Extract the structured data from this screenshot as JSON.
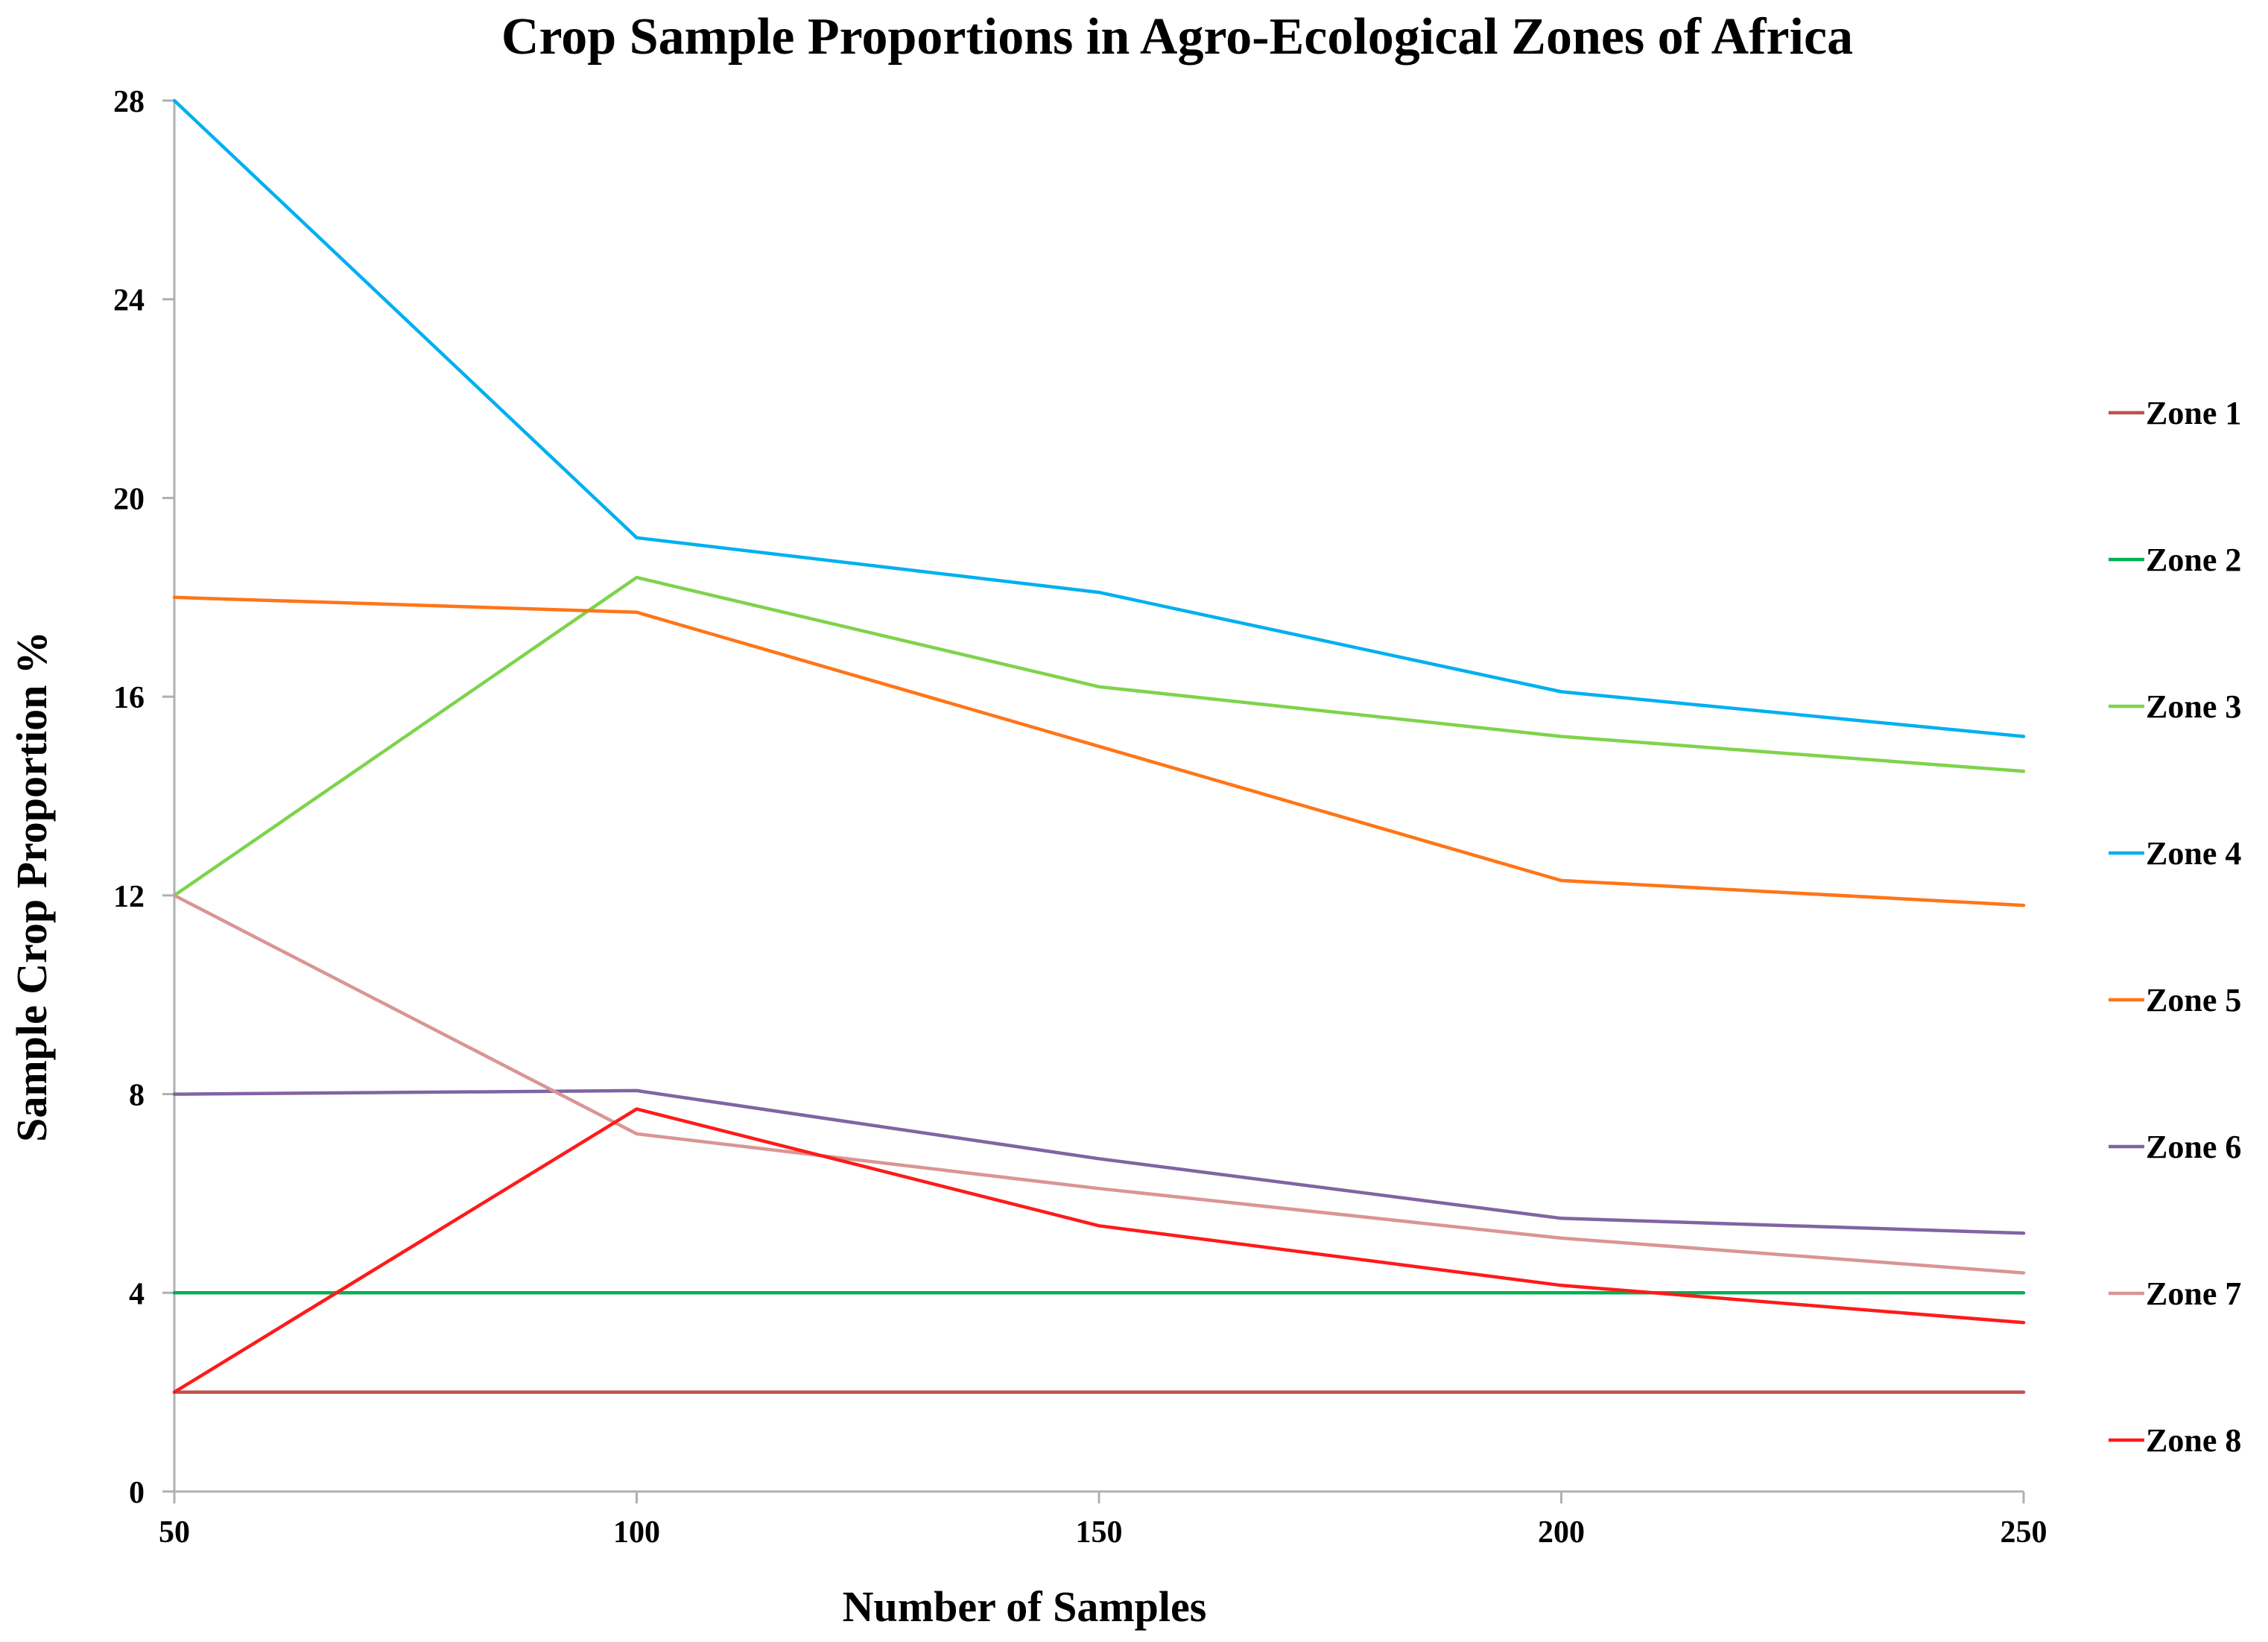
{
  "chart_data": {
    "type": "line",
    "title": "Crop Sample Proportions in Agro-Ecological Zones of Africa",
    "xlabel": "Number of Samples",
    "ylabel": "Sample Crop Proportion %",
    "x": [
      50,
      100,
      150,
      200,
      250
    ],
    "x_tick_labels": [
      "50",
      "100",
      "150",
      "200",
      "250"
    ],
    "xlim": [
      50,
      250
    ],
    "ylim": [
      0,
      28
    ],
    "y_ticks": [
      0,
      4,
      8,
      12,
      16,
      20,
      24,
      28
    ],
    "y_tick_labels": [
      "0",
      "4",
      "8",
      "12",
      "16",
      "20",
      "24",
      "28"
    ],
    "grid": false,
    "legend_position": "right",
    "series": [
      {
        "name": "Zone 1",
        "color": "#c0504d",
        "values": [
          2.0,
          2.0,
          2.0,
          2.0,
          2.0
        ]
      },
      {
        "name": "Zone 2",
        "color": "#00b050",
        "values": [
          4.0,
          4.0,
          4.0,
          4.0,
          4.0
        ]
      },
      {
        "name": "Zone 3",
        "color": "#7ed34b",
        "values": [
          12.0,
          18.4,
          16.2,
          15.2,
          14.5
        ]
      },
      {
        "name": "Zone 4",
        "color": "#00b0f0",
        "values": [
          28.0,
          19.2,
          18.1,
          16.1,
          15.2
        ]
      },
      {
        "name": "Zone 5",
        "color": "#ff7518",
        "values": [
          18.0,
          17.7,
          15.0,
          12.3,
          11.8
        ]
      },
      {
        "name": "Zone 6",
        "color": "#8064a2",
        "values": [
          8.0,
          8.07,
          6.7,
          5.5,
          5.2
        ]
      },
      {
        "name": "Zone 7",
        "color": "#d99594",
        "values": [
          12.0,
          7.2,
          6.1,
          5.1,
          4.4
        ]
      },
      {
        "name": "Zone 8",
        "color": "#ff1a1a",
        "values": [
          2.0,
          7.7,
          5.35,
          4.15,
          3.4
        ]
      }
    ]
  }
}
